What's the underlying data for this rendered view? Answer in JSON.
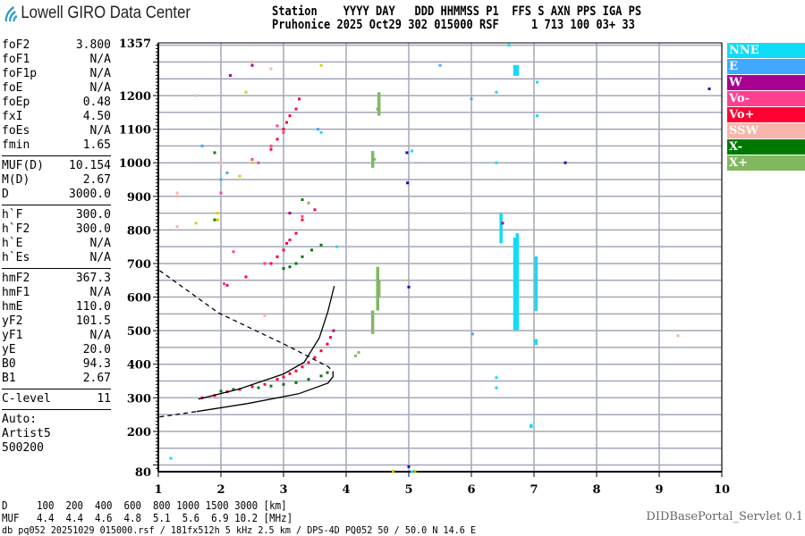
{
  "logo": {
    "text": "Lowell GIRO Data Center",
    "icon": "wifi-signal-icon",
    "color": "#3399cc"
  },
  "header": {
    "line1": "Station    YYYY DAY   DDD HHMMSS P1  FFS S AXN PPS IGA PS",
    "line2": "Pruhonice 2025 Oct29 302 015000 RSF     1 713 100 03+ 33"
  },
  "params": {
    "group1": [
      {
        "name": "foF2",
        "value": "3.800"
      },
      {
        "name": "foF1",
        "value": "N/A"
      },
      {
        "name": "foF1p",
        "value": "N/A"
      },
      {
        "name": "foE",
        "value": "N/A"
      },
      {
        "name": "foEp",
        "value": "0.48"
      },
      {
        "name": "fxI",
        "value": "4.50"
      },
      {
        "name": "foEs",
        "value": "N/A"
      },
      {
        "name": "fmin",
        "value": "1.65"
      }
    ],
    "group2": [
      {
        "name": "MUF(D)",
        "value": "10.154"
      },
      {
        "name": "M(D)",
        "value": "2.67"
      },
      {
        "name": "D",
        "value": "3000.0"
      }
    ],
    "group3": [
      {
        "name": "h`F",
        "value": "300.0"
      },
      {
        "name": "h`F2",
        "value": "300.0"
      },
      {
        "name": "h`E",
        "value": "N/A"
      },
      {
        "name": "h`Es",
        "value": "N/A"
      }
    ],
    "group4": [
      {
        "name": "hmF2",
        "value": "367.3"
      },
      {
        "name": "hmF1",
        "value": "N/A"
      },
      {
        "name": "hmE",
        "value": "110.0"
      },
      {
        "name": "yF2",
        "value": "101.5"
      },
      {
        "name": "yF1",
        "value": "N/A"
      },
      {
        "name": "yE",
        "value": "20.0"
      },
      {
        "name": "B0",
        "value": "94.3"
      },
      {
        "name": "B1",
        "value": "2.67"
      }
    ],
    "group5": [
      {
        "name": "C-level",
        "value": "11"
      }
    ],
    "auto": [
      "Auto:",
      "Artist5",
      "500200"
    ]
  },
  "legend": [
    {
      "label": "NNE",
      "color": "#10dcf8"
    },
    {
      "label": "E",
      "color": "#40a8ff"
    },
    {
      "label": "W",
      "color": "#a8008f"
    },
    {
      "label": "Vo-",
      "color": "#ff4090"
    },
    {
      "label": "Vo+",
      "color": "#ff0033"
    },
    {
      "label": "SSW",
      "color": "#f8b4a8"
    },
    {
      "label": "X-",
      "color": "#007800"
    },
    {
      "label": "X+",
      "color": "#80b860"
    }
  ],
  "distance_table": {
    "line1": "D     100  200  400  600  800 1000 1500 3000 [km]",
    "line2": "MUF   4.4  4.4  4.6  4.8  5.1  5.6  6.9 10.2 [MHz]"
  },
  "footer": "db pq052 20251029 015000.rsf / 181fx512h 5 kHz 2.5 km / DPS-4D PQ052 50 / 50.0 N 14.6 E",
  "servlet": "DIDBasePortal_Servlet 0.1",
  "chart_data": {
    "type": "scatter",
    "title": "",
    "xlabel": "",
    "ylabel": "",
    "xlim": [
      1,
      10
    ],
    "ylim": [
      80,
      1357
    ],
    "x_ticks": [
      "1",
      "2",
      "3",
      "4",
      "5",
      "6",
      "7",
      "8",
      "9",
      "10"
    ],
    "y_ticks": [
      "1357",
      "1200",
      "1100",
      "1000",
      "900",
      "800",
      "700",
      "600",
      "500",
      "400",
      "300",
      "200",
      "80"
    ],
    "grid": true,
    "legend_position": "right",
    "series": [
      {
        "name": "Vo+",
        "color": "#ff0033",
        "points": [
          [
            1.7,
            300
          ],
          [
            1.9,
            307
          ],
          [
            2.1,
            318
          ],
          [
            2.3,
            325
          ],
          [
            2.5,
            333
          ],
          [
            2.7,
            340
          ],
          [
            2.9,
            355
          ],
          [
            3.0,
            362
          ],
          [
            3.1,
            372
          ],
          [
            3.2,
            380
          ],
          [
            3.3,
            392
          ],
          [
            3.4,
            405
          ],
          [
            3.5,
            420
          ],
          [
            3.6,
            440
          ],
          [
            3.7,
            460
          ],
          [
            3.75,
            480
          ],
          [
            2.1,
            635
          ],
          [
            2.4,
            660
          ],
          [
            2.8,
            700
          ],
          [
            2.9,
            720
          ],
          [
            3.0,
            740
          ],
          [
            3.05,
            760
          ],
          [
            3.1,
            770
          ],
          [
            3.2,
            790
          ],
          [
            3.3,
            830
          ],
          [
            3.5,
            860
          ],
          [
            2.8,
            1040
          ],
          [
            2.9,
            1070
          ],
          [
            3.0,
            1100
          ],
          [
            3.05,
            1120
          ],
          [
            3.1,
            1140
          ],
          [
            3.2,
            1160
          ],
          [
            3.25,
            1190
          ]
        ]
      },
      {
        "name": "Vo-",
        "color": "#ff4090",
        "points": [
          [
            2.2,
            735
          ],
          [
            2.05,
            640
          ],
          [
            2.7,
            700
          ],
          [
            2.0,
            910
          ],
          [
            2.5,
            1010
          ],
          [
            2.6,
            1000
          ],
          [
            3.0,
            1090
          ],
          [
            2.9,
            1110
          ],
          [
            2.8,
            1050
          ],
          [
            3.3,
            840
          ]
        ]
      },
      {
        "name": "X-",
        "color": "#007800",
        "points": [
          [
            2.6,
            330
          ],
          [
            2.8,
            335
          ],
          [
            3.0,
            340
          ],
          [
            3.2,
            345
          ],
          [
            3.4,
            355
          ],
          [
            3.6,
            365
          ],
          [
            3.7,
            375
          ],
          [
            3.0,
            685
          ],
          [
            3.1,
            690
          ],
          [
            3.2,
            700
          ],
          [
            3.3,
            720
          ],
          [
            3.45,
            740
          ],
          [
            3.6,
            755
          ],
          [
            1.9,
            830
          ],
          [
            1.9,
            1030
          ],
          [
            3.3,
            890
          ],
          [
            2.0,
            320
          ],
          [
            2.2,
            325
          ]
        ]
      },
      {
        "name": "X+",
        "color": "#80b860",
        "points": [
          [
            4.15,
            425
          ],
          [
            4.2,
            435
          ],
          [
            4.5,
            1160
          ],
          [
            4.45,
            1010
          ],
          [
            3.4,
            880
          ]
        ],
        "segments": [
          [
            4.42,
            490,
            560
          ],
          [
            4.5,
            560,
            690
          ],
          [
            4.42,
            985,
            1035
          ],
          [
            4.52,
            1140,
            1210
          ],
          [
            4.52,
            600,
            650
          ]
        ]
      },
      {
        "name": "NNE",
        "color": "#10dcf8",
        "points": [
          [
            3.85,
            750
          ],
          [
            3.6,
            1090
          ],
          [
            5.05,
            1035
          ],
          [
            6.4,
            1210
          ],
          [
            6.4,
            1000
          ],
          [
            7.05,
            1240
          ],
          [
            7.05,
            1140
          ],
          [
            6.4,
            360
          ],
          [
            6.4,
            330
          ],
          [
            5.05,
            80
          ],
          [
            1.2,
            120
          ],
          [
            6.6,
            1350
          ]
        ],
        "segments": [
          [
            6.47,
            760,
            850
          ],
          [
            6.69,
            502,
            777
          ],
          [
            6.73,
            502,
            790
          ],
          [
            7.03,
            558,
            721
          ],
          [
            7.03,
            457,
            475
          ],
          [
            6.69,
            1259,
            1291
          ],
          [
            6.73,
            1259,
            1291
          ],
          [
            6.95,
            210,
            222
          ]
        ]
      },
      {
        "name": "E",
        "color": "#40a8ff",
        "points": [
          [
            2.0,
            950
          ],
          [
            2.1,
            970
          ],
          [
            1.7,
            1050
          ],
          [
            6.02,
            490
          ],
          [
            5.5,
            1290
          ],
          [
            6.0,
            1190
          ],
          [
            3.55,
            1100
          ]
        ]
      },
      {
        "name": "W",
        "color": "#a8008f",
        "points": [
          [
            3.1,
            850
          ],
          [
            2.5,
            1290
          ],
          [
            3.8,
            500
          ],
          [
            6.5,
            820
          ],
          [
            2.15,
            1260
          ]
        ]
      },
      {
        "name": "SSW",
        "color": "#f8b4a8",
        "points": [
          [
            1.3,
            900
          ],
          [
            1.3,
            910
          ],
          [
            1.6,
            1200
          ],
          [
            2.8,
            1280
          ],
          [
            1.3,
            810
          ],
          [
            2.0,
            1000
          ],
          [
            2.5,
            1300
          ],
          [
            2.7,
            545
          ],
          [
            9.3,
            485
          ]
        ]
      },
      {
        "name": "",
        "color": "#d8d000",
        "points": [
          [
            2.5,
            1000
          ],
          [
            2.3,
            960
          ],
          [
            1.95,
            830
          ],
          [
            1.95,
            850
          ],
          [
            3.6,
            1290
          ],
          [
            4.75,
            82
          ],
          [
            5.1,
            82
          ],
          [
            1.6,
            820
          ],
          [
            2.4,
            1210
          ]
        ]
      },
      {
        "name": "",
        "color": "#2000c0",
        "points": [
          [
            4.97,
            1030
          ],
          [
            4.98,
            940
          ],
          [
            9.8,
            1220
          ],
          [
            5.0,
            630
          ],
          [
            7.5,
            1000
          ],
          [
            5.0,
            95
          ]
        ]
      }
    ],
    "curves": [
      {
        "style": "solid",
        "points": [
          [
            1.64,
            296
          ],
          [
            2.29,
            326
          ],
          [
            3.0,
            371
          ],
          [
            3.33,
            406
          ],
          [
            3.57,
            478
          ],
          [
            3.71,
            558
          ],
          [
            3.81,
            633
          ]
        ]
      },
      {
        "style": "solid",
        "points": [
          [
            1.61,
            259
          ],
          [
            2.43,
            283
          ],
          [
            3.24,
            312
          ],
          [
            3.71,
            344
          ],
          [
            3.79,
            363
          ],
          [
            3.79,
            379
          ]
        ]
      },
      {
        "style": "dashed",
        "points": [
          [
            1.02,
            243
          ],
          [
            1.61,
            259
          ]
        ]
      },
      {
        "style": "dashed",
        "points": [
          [
            1.02,
            679
          ],
          [
            1.96,
            553
          ],
          [
            3.04,
            457
          ],
          [
            3.71,
            393
          ],
          [
            3.79,
            379
          ]
        ]
      }
    ]
  }
}
